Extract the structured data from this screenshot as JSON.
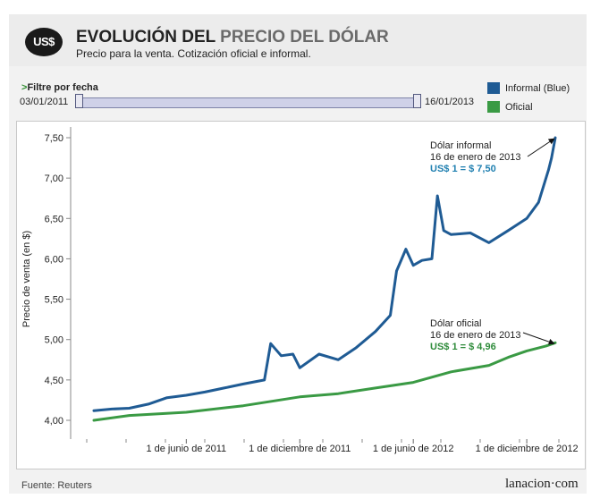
{
  "header": {
    "badge": "US$",
    "title_part1": "EVOLUCIÓN DEL ",
    "title_part2": "PRECIO DEL DÓLAR",
    "subtitle": "Precio para la venta. Cotización oficial e informal."
  },
  "filter": {
    "arrow": ">",
    "label": "Filtre por fecha",
    "start_date": "03/01/2011",
    "end_date": "16/01/2013"
  },
  "legend": [
    {
      "label": "Informal (Blue)",
      "color": "#1f5b94"
    },
    {
      "label": "Oficial",
      "color": "#3a9a44"
    }
  ],
  "footer": {
    "source": "Fuente: Reuters",
    "brand": "lanacion·com"
  },
  "chart_data": {
    "type": "line",
    "xlabel": "",
    "ylabel": "Precio de venta (en $)",
    "x_range": [
      "2011-01-03",
      "2013-01-16"
    ],
    "ylim": [
      3.85,
      7.85
    ],
    "y_ticks": [
      4.0,
      4.5,
      5.0,
      5.5,
      6.0,
      6.5,
      7.0,
      7.5
    ],
    "y_tick_labels": [
      "4,00",
      "4,50",
      "5,00",
      "5,50",
      "6,00",
      "6,50",
      "7,00",
      "7,50"
    ],
    "x_tick_dates": [
      "2011-06-01",
      "2011-12-01",
      "2012-06-01",
      "2012-12-01"
    ],
    "x_tick_labels": [
      "1 de junio de 2011",
      "1 de diciembre de 2011",
      "1 de junio de 2012",
      "1 de diciembre de 2012"
    ],
    "series": [
      {
        "name": "Informal (Blue)",
        "color": "#1f5b94",
        "points": [
          [
            "2011-01-03",
            4.12
          ],
          [
            "2011-02-01",
            4.14
          ],
          [
            "2011-03-01",
            4.15
          ],
          [
            "2011-04-01",
            4.2
          ],
          [
            "2011-05-01",
            4.28
          ],
          [
            "2011-06-01",
            4.31
          ],
          [
            "2011-07-01",
            4.35
          ],
          [
            "2011-08-01",
            4.4
          ],
          [
            "2011-09-01",
            4.45
          ],
          [
            "2011-10-05",
            4.5
          ],
          [
            "2011-10-15",
            4.95
          ],
          [
            "2011-11-01",
            4.8
          ],
          [
            "2011-11-20",
            4.82
          ],
          [
            "2011-12-01",
            4.65
          ],
          [
            "2012-01-01",
            4.82
          ],
          [
            "2012-02-01",
            4.75
          ],
          [
            "2012-03-01",
            4.9
          ],
          [
            "2012-04-01",
            5.1
          ],
          [
            "2012-04-25",
            5.3
          ],
          [
            "2012-05-05",
            5.85
          ],
          [
            "2012-05-20",
            6.12
          ],
          [
            "2012-06-01",
            5.92
          ],
          [
            "2012-06-15",
            5.98
          ],
          [
            "2012-07-01",
            6.0
          ],
          [
            "2012-07-10",
            6.78
          ],
          [
            "2012-07-20",
            6.35
          ],
          [
            "2012-08-01",
            6.3
          ],
          [
            "2012-09-01",
            6.32
          ],
          [
            "2012-10-01",
            6.2
          ],
          [
            "2012-11-01",
            6.35
          ],
          [
            "2012-12-01",
            6.5
          ],
          [
            "2012-12-20",
            6.7
          ],
          [
            "2013-01-05",
            7.1
          ],
          [
            "2013-01-10",
            7.25
          ],
          [
            "2013-01-16",
            7.5
          ]
        ]
      },
      {
        "name": "Oficial",
        "color": "#3a9a44",
        "points": [
          [
            "2011-01-03",
            4.0
          ],
          [
            "2011-03-01",
            4.06
          ],
          [
            "2011-06-01",
            4.1
          ],
          [
            "2011-09-01",
            4.18
          ],
          [
            "2011-12-01",
            4.29
          ],
          [
            "2012-02-01",
            4.33
          ],
          [
            "2012-04-01",
            4.4
          ],
          [
            "2012-06-01",
            4.47
          ],
          [
            "2012-08-01",
            4.6
          ],
          [
            "2012-10-01",
            4.68
          ],
          [
            "2012-11-01",
            4.78
          ],
          [
            "2012-12-01",
            4.86
          ],
          [
            "2013-01-01",
            4.92
          ],
          [
            "2013-01-16",
            4.96
          ]
        ]
      }
    ],
    "annotations": [
      {
        "series": "Informal (Blue)",
        "date": "2013-01-16",
        "value": 7.5,
        "line1": "Dólar informal",
        "line2": "16 de enero de 2013",
        "line3": "US$ 1 = $ 7,50",
        "color": "#1f7fb0"
      },
      {
        "series": "Oficial",
        "date": "2013-01-16",
        "value": 4.96,
        "line1": "Dólar oficial",
        "line2": "16 de enero de 2013",
        "line3": "US$ 1 = $ 4,96",
        "color": "#2e8b3a"
      }
    ]
  }
}
